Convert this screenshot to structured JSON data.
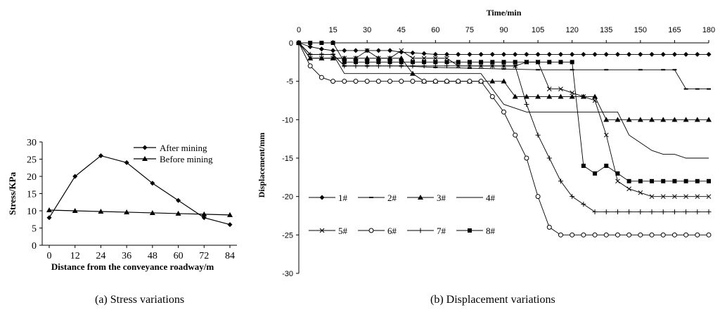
{
  "chart_data": [
    {
      "type": "line",
      "xlabel": "Distance from the conveyance roadway/m",
      "ylabel": "Stress/KPa",
      "x": [
        0,
        12,
        24,
        36,
        48,
        60,
        72,
        84
      ],
      "xlim": [
        0,
        84
      ],
      "ylim": [
        0,
        30
      ],
      "yticks": [
        0,
        5,
        10,
        15,
        20,
        25,
        30
      ],
      "legend_position": "top-right",
      "series": [
        {
          "name": "After mining",
          "marker": "diamond",
          "values": [
            8,
            20,
            26,
            24,
            18,
            13,
            8,
            6
          ]
        },
        {
          "name": "Before mining",
          "marker": "triangle",
          "values": [
            10.2,
            10,
            9.8,
            9.6,
            9.4,
            9.2,
            9,
            8.8
          ]
        }
      ]
    },
    {
      "type": "line",
      "xlabel": "Time/min",
      "ylabel": "Displacement/mm",
      "x_axis_position": "top",
      "xlim": [
        0,
        180
      ],
      "xticks": [
        0,
        15,
        30,
        45,
        60,
        75,
        90,
        105,
        120,
        135,
        150,
        165,
        180
      ],
      "ylim": [
        -30,
        0
      ],
      "yticks": [
        0,
        -5,
        -10,
        -15,
        -20,
        -25,
        -30
      ],
      "legend_position": "lower-left",
      "series": [
        {
          "name": "1#",
          "marker": "diamond",
          "x": [
            0,
            5,
            10,
            15,
            20,
            25,
            30,
            35,
            40,
            45,
            50,
            55,
            60,
            65,
            70,
            75,
            80,
            85,
            90,
            95,
            100,
            105,
            110,
            115,
            120,
            125,
            130,
            135,
            140,
            145,
            150,
            155,
            160,
            165,
            170,
            175,
            180
          ],
          "y": [
            0,
            -0.5,
            -0.8,
            -1,
            -1,
            -1,
            -1,
            -1,
            -1,
            -1.2,
            -1.3,
            -1.4,
            -1.5,
            -1.5,
            -1.5,
            -1.5,
            -1.5,
            -1.5,
            -1.5,
            -1.5,
            -1.5,
            -1.5,
            -1.5,
            -1.5,
            -1.5,
            -1.5,
            -1.5,
            -1.5,
            -1.5,
            -1.5,
            -1.5,
            -1.5,
            -1.5,
            -1.5,
            -1.5,
            -1.5,
            -1.5
          ]
        },
        {
          "name": "2#",
          "marker": "dash",
          "x": [
            0,
            5,
            10,
            15,
            20,
            30,
            45,
            60,
            75,
            90,
            105,
            120,
            135,
            150,
            160,
            165,
            170,
            175,
            180
          ],
          "y": [
            0,
            -1.5,
            -1.5,
            -1.5,
            -3,
            -3,
            -3,
            -3.2,
            -3.3,
            -3.4,
            -3.5,
            -3.5,
            -3.5,
            -3.5,
            -3.5,
            -3.5,
            -6,
            -6,
            -6
          ]
        },
        {
          "name": "3#",
          "marker": "triangle",
          "x": [
            0,
            5,
            10,
            15,
            20,
            25,
            30,
            35,
            40,
            45,
            50,
            55,
            60,
            65,
            70,
            75,
            80,
            85,
            90,
            95,
            100,
            105,
            110,
            115,
            120,
            125,
            130,
            135,
            140,
            145,
            150,
            155,
            160,
            165,
            170,
            175,
            180
          ],
          "y": [
            0,
            -2,
            -2,
            -2,
            -2,
            -2,
            -2,
            -2,
            -2,
            -2,
            -4,
            -5,
            -5,
            -5,
            -5,
            -5,
            -5,
            -5,
            -5,
            -7,
            -7,
            -7,
            -7,
            -7,
            -7,
            -7,
            -7,
            -10,
            -10,
            -10,
            -10,
            -10,
            -10,
            -10,
            -10,
            -10,
            -10
          ]
        },
        {
          "name": "4#",
          "marker": "none",
          "x": [
            0,
            5,
            10,
            15,
            20,
            80,
            90,
            100,
            140,
            145,
            150,
            155,
            160,
            165,
            170,
            175,
            180
          ],
          "y": [
            0,
            -1.5,
            -1.5,
            -1.5,
            -4,
            -4,
            -8,
            -9,
            -9,
            -12,
            -13,
            -14,
            -14.5,
            -14.5,
            -15,
            -15,
            -15
          ]
        },
        {
          "name": "5#",
          "marker": "x",
          "x": [
            0,
            5,
            10,
            15,
            20,
            25,
            30,
            35,
            40,
            45,
            50,
            55,
            60,
            65,
            70,
            75,
            80,
            85,
            90,
            95,
            100,
            105,
            110,
            115,
            120,
            125,
            130,
            135,
            140,
            145,
            150,
            155,
            160,
            165,
            170,
            175,
            180
          ],
          "y": [
            0,
            -2,
            -2,
            -2,
            -2,
            -2,
            -1,
            -2,
            -2,
            -1,
            -2,
            -2,
            -2,
            -2,
            -3,
            -3,
            -3,
            -3,
            -3,
            -3,
            -2.5,
            -2.5,
            -6,
            -6,
            -6.5,
            -7,
            -7.5,
            -12,
            -18,
            -19,
            -19.5,
            -20,
            -20,
            -20,
            -20,
            -20,
            -20
          ]
        },
        {
          "name": "6#",
          "marker": "circle",
          "x": [
            0,
            5,
            10,
            15,
            20,
            25,
            30,
            35,
            40,
            45,
            50,
            55,
            60,
            65,
            70,
            75,
            80,
            85,
            90,
            95,
            100,
            105,
            110,
            115,
            120,
            125,
            130,
            135,
            140,
            145,
            150,
            155,
            160,
            165,
            170,
            175,
            180
          ],
          "y": [
            0,
            -3,
            -4.5,
            -5,
            -5,
            -5,
            -5,
            -5,
            -5,
            -5,
            -5,
            -5,
            -5,
            -5,
            -5,
            -5,
            -5,
            -7,
            -9,
            -12,
            -15,
            -20,
            -24,
            -25,
            -25,
            -25,
            -25,
            -25,
            -25,
            -25,
            -25,
            -25,
            -25,
            -25,
            -25,
            -25,
            -25
          ]
        },
        {
          "name": "7#",
          "marker": "plus",
          "x": [
            0,
            5,
            10,
            15,
            20,
            25,
            30,
            35,
            40,
            45,
            50,
            55,
            60,
            65,
            70,
            75,
            80,
            85,
            90,
            95,
            100,
            105,
            110,
            115,
            120,
            125,
            130,
            135,
            140,
            145,
            150,
            155,
            160,
            165,
            170,
            175,
            180
          ],
          "y": [
            0,
            -1.5,
            -1.5,
            -1.5,
            -3,
            -3,
            -3,
            -3,
            -3,
            -3,
            -3,
            -3,
            -3,
            -3,
            -3,
            -3,
            -3,
            -3,
            -3,
            -3,
            -8,
            -12,
            -15,
            -18,
            -20,
            -21,
            -22,
            -22,
            -22,
            -22,
            -22,
            -22,
            -22,
            -22,
            -22,
            -22,
            -22
          ]
        },
        {
          "name": "8#",
          "marker": "square",
          "x": [
            0,
            5,
            10,
            15,
            20,
            25,
            30,
            35,
            40,
            45,
            50,
            55,
            60,
            65,
            70,
            75,
            80,
            85,
            90,
            95,
            100,
            105,
            110,
            115,
            120,
            125,
            130,
            135,
            140,
            145,
            150,
            155,
            160,
            165,
            170,
            175,
            180
          ],
          "y": [
            0,
            0,
            0,
            0,
            -2.5,
            -2.5,
            -2.5,
            -2.5,
            -2.5,
            -2.5,
            -2.5,
            -2.5,
            -2.5,
            -2.5,
            -2.5,
            -2.5,
            -2.5,
            -2.5,
            -2.5,
            -2.5,
            -2.5,
            -2.5,
            -2.5,
            -2.5,
            -2.5,
            -16,
            -17,
            -16,
            -17,
            -18,
            -18,
            -18,
            -18,
            -18,
            -18,
            -18,
            -18
          ]
        }
      ]
    }
  ],
  "captions": {
    "a": "(a) Stress variations",
    "b": "(b) Displacement variations"
  }
}
